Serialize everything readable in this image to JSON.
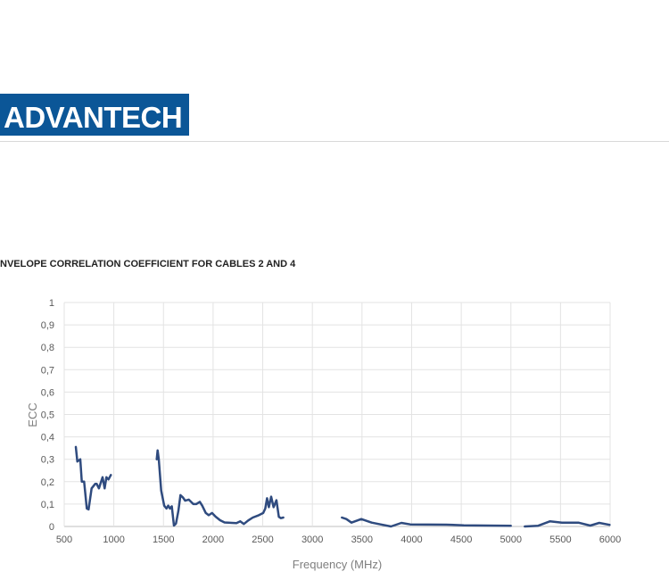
{
  "header": {
    "logo_text": "ADVANTECH",
    "logo_color": "#0b5697"
  },
  "section_title": "NVELOPE CORRELATION COEFFICIENT FOR CABLES 2 AND 4",
  "chart_data": {
    "type": "line",
    "title": "",
    "xlabel": "Frequency (MHz)",
    "ylabel": "ECC",
    "xlim": [
      500,
      6000
    ],
    "ylim": [
      0,
      1
    ],
    "xticks": [
      "500",
      "1000",
      "1500",
      "2000",
      "2500",
      "3000",
      "3500",
      "4000",
      "4500",
      "5000",
      "5500",
      "6000"
    ],
    "yticks": [
      "0",
      "0,1",
      "0,2",
      "0,3",
      "0,4",
      "0,5",
      "0,6",
      "0,7",
      "0,8",
      "0,9",
      "1"
    ],
    "grid": true,
    "line_color": "#2f4b7f",
    "segments": [
      {
        "x": [
          617,
          632,
          662,
          677,
          700,
          727,
          745,
          776,
          812,
          827,
          850,
          886,
          907,
          925,
          946,
          970
        ],
        "y": [
          0.355,
          0.29,
          0.3,
          0.2,
          0.2,
          0.08,
          0.076,
          0.17,
          0.19,
          0.19,
          0.17,
          0.22,
          0.17,
          0.22,
          0.21,
          0.23
        ]
      },
      {
        "x": [
          1432,
          1441,
          1453,
          1477,
          1507,
          1530,
          1548,
          1566,
          1584,
          1605,
          1626,
          1650,
          1671,
          1695,
          1719,
          1755,
          1800,
          1830,
          1866,
          1890,
          1926,
          1956,
          1989,
          2025,
          2070,
          2115,
          2190,
          2235,
          2273,
          2310,
          2355,
          2400,
          2460,
          2505,
          2526,
          2544,
          2562,
          2585,
          2609,
          2638,
          2662,
          2683,
          2707
        ],
        "y": [
          0.3,
          0.34,
          0.3,
          0.16,
          0.093,
          0.08,
          0.093,
          0.08,
          0.09,
          0.004,
          0.013,
          0.07,
          0.14,
          0.13,
          0.115,
          0.12,
          0.1,
          0.1,
          0.11,
          0.093,
          0.06,
          0.05,
          0.06,
          0.044,
          0.028,
          0.018,
          0.016,
          0.015,
          0.023,
          0.011,
          0.027,
          0.04,
          0.05,
          0.06,
          0.08,
          0.126,
          0.086,
          0.133,
          0.086,
          0.117,
          0.043,
          0.037,
          0.04
        ]
      },
      {
        "x": [
          3298,
          3343,
          3394,
          3493,
          3598,
          3688,
          3792,
          3897,
          3987,
          4350,
          4526,
          5000
        ],
        "y": [
          0.04,
          0.033,
          0.017,
          0.033,
          0.017,
          0.009,
          0.0,
          0.016,
          0.009,
          0.008,
          0.005,
          0.003
        ]
      },
      {
        "x": [
          5140,
          5275,
          5395,
          5515,
          5680,
          5800,
          5890,
          5995
        ],
        "y": [
          0.0,
          0.003,
          0.023,
          0.017,
          0.017,
          0.004,
          0.016,
          0.007
        ]
      }
    ]
  }
}
